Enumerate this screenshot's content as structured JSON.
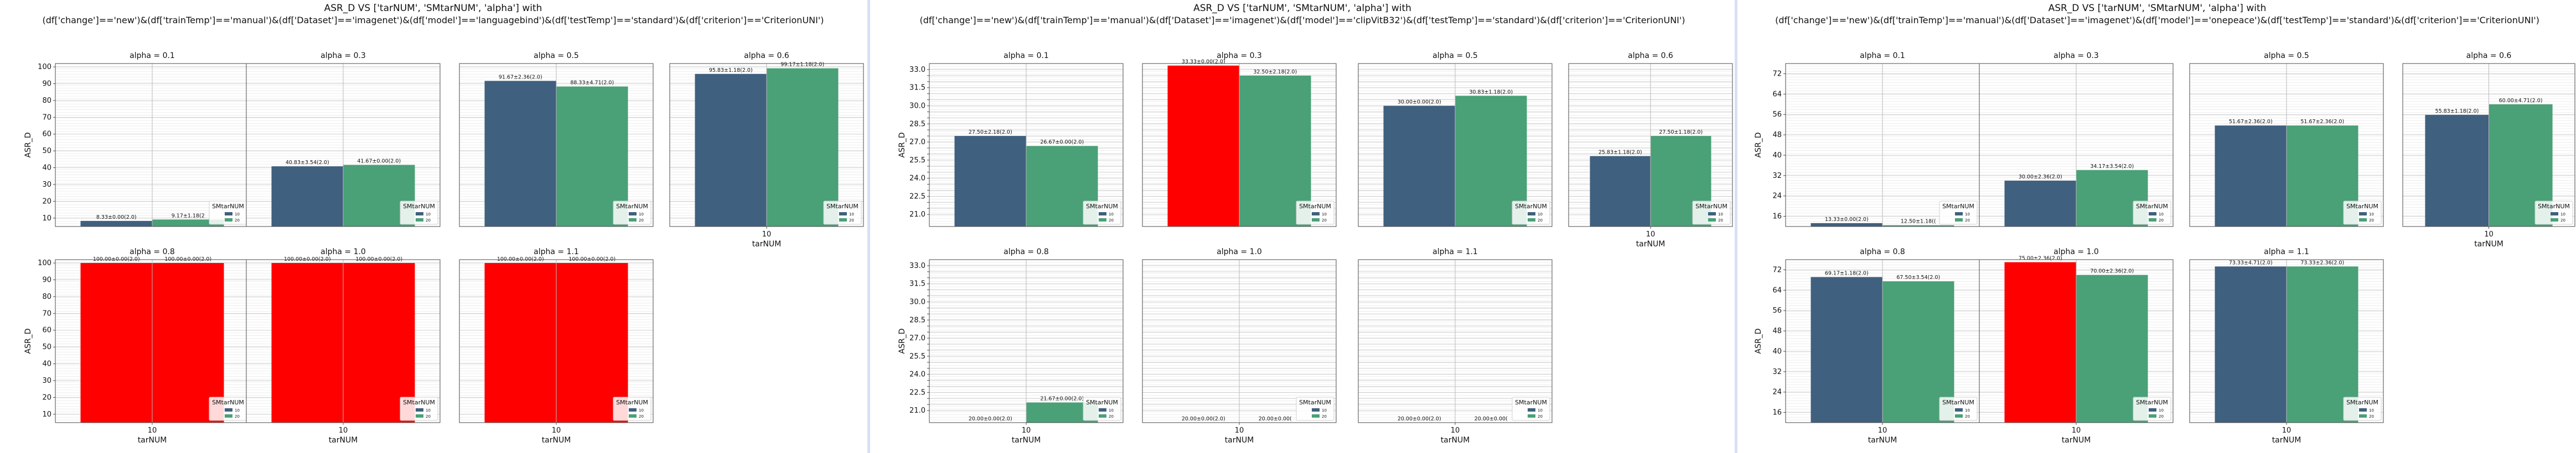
{
  "chart_data": [
    {
      "type": "bar",
      "title": "ASR_D VS ['tarNUM', 'SMtarNUM', 'alpha'] with",
      "subtitle": "(df['change']=='new')&(df['trainTemp']=='manual')&(df['Dataset']=='imagenet')&(df['model']=='languagebind')&(df['testTemp']=='standard')&(df['criterion']=='CriterionUNI')",
      "xlabel": "tarNUM",
      "ylabel": "ASR_D",
      "category": "10",
      "legend_title": "SMtarNUM",
      "legend_labels": [
        "10",
        "20"
      ],
      "ylim": [
        5,
        102
      ],
      "yticks": [
        "10",
        "20",
        "30",
        "40",
        "50",
        "60",
        "70",
        "80",
        "90",
        "100"
      ],
      "grid": true,
      "panels": [
        {
          "title": "alpha = 0.1",
          "values": [
            8.33,
            9.17
          ],
          "labels": [
            "8.33±0.00(2.0)",
            "9.17±1.18(2"
          ],
          "highlight": []
        },
        {
          "title": "alpha = 0.3",
          "values": [
            40.83,
            41.67
          ],
          "labels": [
            "40.83±3.54(2.0)",
            "41.67±0.00(2.0)"
          ],
          "highlight": []
        },
        {
          "title": "alpha = 0.5",
          "values": [
            91.67,
            88.33
          ],
          "labels": [
            "91.67±2.36(2.0)",
            "88.33±4.71(2.0)"
          ],
          "highlight": []
        },
        {
          "title": "alpha = 0.6",
          "values": [
            95.83,
            99.17
          ],
          "labels": [
            "95.83±1.18(2.0)",
            "99.17±1.18(2.0)"
          ],
          "highlight": []
        },
        {
          "title": "alpha = 0.8",
          "values": [
            100,
            100
          ],
          "labels": [
            "100.00±0.00(2.0)",
            "100.00±0.00(2.0)"
          ],
          "highlight": [
            0,
            1
          ]
        },
        {
          "title": "alpha = 1.0",
          "values": [
            100,
            100
          ],
          "labels": [
            "100.00±0.00(2.0)",
            "100.00±0.00(2.0)"
          ],
          "highlight": [
            0,
            1
          ]
        },
        {
          "title": "alpha = 1.1",
          "values": [
            100,
            100
          ],
          "labels": [
            "100.00±0.00(2.0)",
            "100.00±0.00(2.0)"
          ],
          "highlight": [
            0,
            1
          ]
        }
      ]
    },
    {
      "type": "bar",
      "title": "ASR_D VS ['tarNUM', 'SMtarNUM', 'alpha'] with",
      "subtitle": "(df['change']=='new')&(df['trainTemp']=='manual')&(df['Dataset']=='imagenet')&(df['model']=='clipVitB32')&(df['testTemp']=='standard')&(df['criterion']=='CriterionUNI')",
      "xlabel": "tarNUM",
      "ylabel": "ASR_D",
      "category": "10",
      "legend_title": "SMtarNUM",
      "legend_labels": [
        "10",
        "20"
      ],
      "ylim": [
        20,
        33.5
      ],
      "yticks": [
        "21.0",
        "21.5",
        "22.0",
        "22.5",
        "23.0",
        "23.5",
        "24.0",
        "24.5",
        "25.0",
        "25.5",
        "26.0",
        "26.5",
        "27.0",
        "27.5",
        "28.0",
        "28.5",
        "29.0",
        "29.5",
        "30.0",
        "30.5",
        "31.0",
        "31.5",
        "32.0",
        "32.5",
        "33.0"
      ],
      "ytick_labels": [
        "21.0",
        "22.5",
        "24.0",
        "25.5",
        "27.0",
        "28.5",
        "30.0",
        "31.5",
        "33.0"
      ],
      "grid": true,
      "panels": [
        {
          "title": "alpha = 0.1",
          "values": [
            27.5,
            26.67
          ],
          "labels": [
            "27.50±2.18(2.0)",
            "26.67±0.00(2.0)"
          ],
          "highlight": []
        },
        {
          "title": "alpha = 0.3",
          "values": [
            33.33,
            32.5
          ],
          "labels": [
            "33.33±0.00(2.0)",
            "32.50±2.18(2.0)"
          ],
          "highlight": [
            0
          ]
        },
        {
          "title": "alpha = 0.5",
          "values": [
            30,
            30.83
          ],
          "labels": [
            "30.00±0.00(2.0)",
            "30.83±1.18(2.0)"
          ],
          "highlight": []
        },
        {
          "title": "alpha = 0.6",
          "values": [
            25.83,
            27.5
          ],
          "labels": [
            "25.83±1.18(2.0)",
            "27.50±1.18(2.0)"
          ],
          "highlight": []
        },
        {
          "title": "alpha = 0.8",
          "values": [
            20,
            21.67
          ],
          "labels": [
            "20.00±0.00(2.0)",
            "21.67±0.00(2.0)"
          ],
          "highlight": []
        },
        {
          "title": "alpha = 1.0",
          "values": [
            20,
            20
          ],
          "labels": [
            "20.00±0.00(2.0)",
            "20.00±0.00("
          ],
          "highlight": []
        },
        {
          "title": "alpha = 1.1",
          "values": [
            20,
            20
          ],
          "labels": [
            "20.00±0.00(2.0)",
            "20.00±0.00("
          ],
          "highlight": []
        }
      ]
    },
    {
      "type": "bar",
      "title": "ASR_D VS ['tarNUM', 'SMtarNUM', 'alpha'] with",
      "subtitle": "(df['change']=='new')&(df['trainTemp']=='manual')&(df['Dataset']=='imagenet')&(df['model']=='onepeace')&(df['testTemp']=='standard')&(df['criterion']=='CriterionUNI')",
      "xlabel": "tarNUM",
      "ylabel": "ASR_D",
      "category": "10",
      "legend_title": "SMtarNUM",
      "legend_labels": [
        "10",
        "20"
      ],
      "ylim": [
        12,
        76
      ],
      "yticks": [
        "16",
        "24",
        "32",
        "40",
        "48",
        "56",
        "64",
        "72"
      ],
      "grid": true,
      "panels": [
        {
          "title": "alpha = 0.1",
          "values": [
            13.33,
            12.5
          ],
          "labels": [
            "13.33±0.00(2.0)",
            "12.50±1.18(("
          ],
          "highlight": []
        },
        {
          "title": "alpha = 0.3",
          "values": [
            30,
            34.17
          ],
          "labels": [
            "30.00±2.36(2.0)",
            "34.17±3.54(2.0)"
          ],
          "highlight": []
        },
        {
          "title": "alpha = 0.5",
          "values": [
            51.67,
            51.67
          ],
          "labels": [
            "51.67±2.36(2.0)",
            "51.67±2.36(2.0)"
          ],
          "highlight": []
        },
        {
          "title": "alpha = 0.6",
          "values": [
            55.83,
            60
          ],
          "labels": [
            "55.83±1.18(2.0)",
            "60.00±4.71(2.0)"
          ],
          "highlight": []
        },
        {
          "title": "alpha = 0.8",
          "values": [
            69.17,
            67.5
          ],
          "labels": [
            "69.17±1.18(2.0)",
            "67.50±3.54(2.0)"
          ],
          "highlight": []
        },
        {
          "title": "alpha = 1.0",
          "values": [
            75,
            70
          ],
          "labels": [
            "75.00±2.36(2.0)",
            "70.00±2.36(2.0)"
          ],
          "highlight": [
            0
          ]
        },
        {
          "title": "alpha = 1.1",
          "values": [
            73.33,
            73.33
          ],
          "labels": [
            "73.33±4.71(2.0)",
            "73.33±2.36(2.0)"
          ],
          "highlight": []
        }
      ]
    }
  ],
  "colors": {
    "series_10": "#40607f",
    "series_20": "#4aa077",
    "highlight": "#ff0000",
    "grid": "#cfcfcf",
    "axis": "#4a4a4a",
    "text": "#111111"
  }
}
